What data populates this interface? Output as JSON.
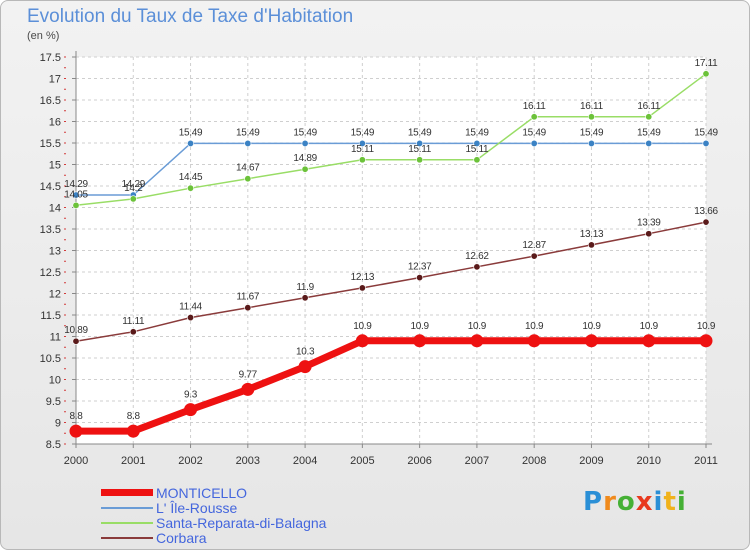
{
  "title": "Evolution du Taux de Taxe d'Habitation",
  "subtitle": "(en %)",
  "logo": {
    "text": "Proxiti",
    "letters": [
      {
        "ch": "P",
        "color": "#2a8fd6"
      },
      {
        "ch": "r",
        "color": "#f08a1c"
      },
      {
        "ch": "o",
        "color": "#45b035"
      },
      {
        "ch": "x",
        "color": "#e8391e"
      },
      {
        "ch": "i",
        "color": "#2a8fd6"
      },
      {
        "ch": "t",
        "color": "#f0b21c"
      },
      {
        "ch": "i",
        "color": "#45b035"
      }
    ]
  },
  "chart_data": {
    "type": "line",
    "title": "Evolution du Taux de Taxe d'Habitation",
    "subtitle": "(en %)",
    "xlabel": "",
    "ylabel": "",
    "categories": [
      "2000",
      "2001",
      "2002",
      "2003",
      "2004",
      "2005",
      "2006",
      "2007",
      "2008",
      "2009",
      "2010",
      "2011"
    ],
    "ylim": [
      8.5,
      17.5
    ],
    "yticks": [
      8.5,
      9,
      9.5,
      10,
      10.5,
      11,
      11.5,
      12,
      12.5,
      13,
      13.5,
      14,
      14.5,
      15,
      15.5,
      16,
      16.5,
      17,
      17.5
    ],
    "grid": true,
    "legend_position": "bottom-left",
    "series": [
      {
        "name": "MONTICELLO",
        "color": "#ee1111",
        "marker_color": "#ee1111",
        "emphasis": "thick",
        "values": [
          8.8,
          8.8,
          9.3,
          9.77,
          10.3,
          10.9,
          10.9,
          10.9,
          10.9,
          10.9,
          10.9,
          10.9
        ],
        "labels": [
          "8.8",
          "8.8",
          "9.3",
          "9.77",
          "10.3",
          "10.9",
          "10.9",
          "10.9",
          "10.9",
          "10.9",
          "10.9",
          "10.9"
        ]
      },
      {
        "name": "L' Île-Rousse",
        "color": "#6a9cd6",
        "marker_color": "#3b82c4",
        "emphasis": "thin",
        "values": [
          14.29,
          14.29,
          15.49,
          15.49,
          15.49,
          15.49,
          15.49,
          15.49,
          15.49,
          15.49,
          15.49,
          15.49
        ],
        "labels": [
          "14.29",
          "14.29",
          "15.49",
          "15.49",
          "15.49",
          "15.49",
          "15.49",
          "15.49",
          "15.49",
          "15.49",
          "15.49",
          "15.49"
        ]
      },
      {
        "name": "Santa-Reparata-di-Balagna",
        "color": "#99dd66",
        "marker_color": "#6cc23a",
        "emphasis": "thin",
        "values": [
          14.05,
          14.2,
          14.45,
          14.67,
          14.89,
          15.11,
          15.11,
          15.11,
          16.11,
          16.11,
          16.11,
          17.11
        ],
        "labels": [
          "14.05",
          "14.2",
          "14.45",
          "14.67",
          "14.89",
          "15.11",
          "15.11",
          "15.11",
          "16.11",
          "16.11",
          "16.11",
          "17.11"
        ]
      },
      {
        "name": "Corbara",
        "color": "#8a3b3b",
        "marker_color": "#5a1a1a",
        "emphasis": "thin",
        "values": [
          10.89,
          11.11,
          11.44,
          11.67,
          11.9,
          12.13,
          12.37,
          12.62,
          12.87,
          13.13,
          13.39,
          13.66
        ],
        "labels": [
          "10.89",
          "11.11",
          "11.44",
          "11.67",
          "11.9",
          "12.13",
          "12.37",
          "12.62",
          "12.87",
          "13.13",
          "13.39",
          "13.66"
        ]
      }
    ]
  }
}
